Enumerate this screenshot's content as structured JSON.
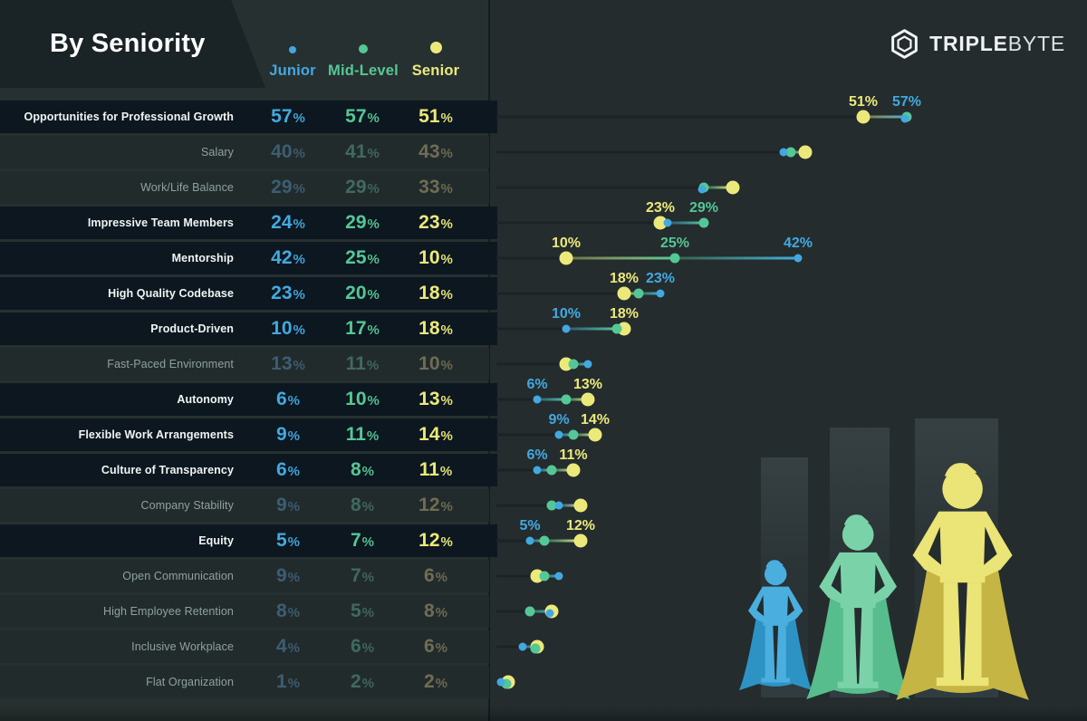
{
  "header": {
    "title": "By Seniority"
  },
  "legend": [
    {
      "label": "Junior",
      "color": "#42a9e0"
    },
    {
      "label": "Mid-Level",
      "color": "#55c795"
    },
    {
      "label": "Senior",
      "color": "#ece97b"
    }
  ],
  "logo": {
    "brand_bold": "TRIPLE",
    "brand_light": "BYTE"
  },
  "colors": {
    "background": "#242c2e",
    "table_panel": "#273030",
    "header_panel": "#1a2325",
    "highlight_row": "#0d1720",
    "dim_row": "#222b2c",
    "junior": "#42a9e0",
    "mid": "#55c795",
    "senior": "#ece97b"
  },
  "art": {
    "junior": {
      "body": "#4aaede",
      "cape": "#2d93c4"
    },
    "mid": {
      "body": "#7ad3a8",
      "cape": "#57bd8d"
    },
    "senior": {
      "body": "#ebe476",
      "cape": "#c4b544"
    },
    "gap": "#242c2e"
  },
  "chart_data": {
    "type": "scatter",
    "subtype": "dot-plot-lollipop",
    "title": "By Seniority",
    "x_unit": "%",
    "x_range": [
      0,
      60
    ],
    "grid": false,
    "legend_position": "top-left",
    "series_names": [
      "Junior",
      "Mid-Level",
      "Senior"
    ],
    "series_colors": {
      "junior": "#42a9e0",
      "mid": "#55c795",
      "senior": "#ece97b"
    },
    "rows": [
      {
        "label": "Opportunities for Professional Growth",
        "junior": 57,
        "mid": 57,
        "senior": 51,
        "highlighted": true,
        "callouts": [
          {
            "value": 51,
            "series": "senior"
          },
          {
            "value": 57,
            "series": "junior"
          }
        ]
      },
      {
        "label": "Salary",
        "junior": 40,
        "mid": 41,
        "senior": 43,
        "highlighted": false,
        "callouts": []
      },
      {
        "label": "Work/Life Balance",
        "junior": 29,
        "mid": 29,
        "senior": 33,
        "highlighted": false,
        "callouts": []
      },
      {
        "label": "Impressive Team Members",
        "junior": 24,
        "mid": 29,
        "senior": 23,
        "highlighted": true,
        "callouts": [
          {
            "value": 23,
            "series": "senior"
          },
          {
            "value": 29,
            "series": "mid"
          }
        ]
      },
      {
        "label": "Mentorship",
        "junior": 42,
        "mid": 25,
        "senior": 10,
        "highlighted": true,
        "callouts": [
          {
            "value": 10,
            "series": "senior"
          },
          {
            "value": 25,
            "series": "mid"
          },
          {
            "value": 42,
            "series": "junior"
          }
        ]
      },
      {
        "label": "High Quality Codebase",
        "junior": 23,
        "mid": 20,
        "senior": 18,
        "highlighted": true,
        "callouts": [
          {
            "value": 18,
            "series": "senior"
          },
          {
            "value": 23,
            "series": "junior"
          }
        ]
      },
      {
        "label": "Product-Driven",
        "junior": 10,
        "mid": 17,
        "senior": 18,
        "highlighted": true,
        "callouts": [
          {
            "value": 10,
            "series": "junior"
          },
          {
            "value": 18,
            "series": "senior"
          }
        ]
      },
      {
        "label": "Fast-Paced Environment",
        "junior": 13,
        "mid": 11,
        "senior": 10,
        "highlighted": false,
        "callouts": []
      },
      {
        "label": "Autonomy",
        "junior": 6,
        "mid": 10,
        "senior": 13,
        "highlighted": true,
        "callouts": [
          {
            "value": 6,
            "series": "junior"
          },
          {
            "value": 13,
            "series": "senior"
          }
        ]
      },
      {
        "label": "Flexible Work Arrangements",
        "junior": 9,
        "mid": 11,
        "senior": 14,
        "highlighted": true,
        "callouts": [
          {
            "value": 9,
            "series": "junior"
          },
          {
            "value": 14,
            "series": "senior"
          }
        ]
      },
      {
        "label": "Culture of Transparency",
        "junior": 6,
        "mid": 8,
        "senior": 11,
        "highlighted": true,
        "callouts": [
          {
            "value": 6,
            "series": "junior"
          },
          {
            "value": 11,
            "series": "senior"
          }
        ]
      },
      {
        "label": "Company Stability",
        "junior": 9,
        "mid": 8,
        "senior": 12,
        "highlighted": false,
        "callouts": []
      },
      {
        "label": "Equity",
        "junior": 5,
        "mid": 7,
        "senior": 12,
        "highlighted": true,
        "callouts": [
          {
            "value": 5,
            "series": "junior"
          },
          {
            "value": 12,
            "series": "senior"
          }
        ]
      },
      {
        "label": "Open Communication",
        "junior": 9,
        "mid": 7,
        "senior": 6,
        "highlighted": false,
        "callouts": []
      },
      {
        "label": "High Employee Retention",
        "junior": 8,
        "mid": 5,
        "senior": 8,
        "highlighted": false,
        "callouts": []
      },
      {
        "label": "Inclusive Workplace",
        "junior": 4,
        "mid": 6,
        "senior": 6,
        "highlighted": false,
        "callouts": []
      },
      {
        "label": "Flat Organization",
        "junior": 1,
        "mid": 2,
        "senior": 2,
        "highlighted": false,
        "callouts": []
      }
    ]
  }
}
